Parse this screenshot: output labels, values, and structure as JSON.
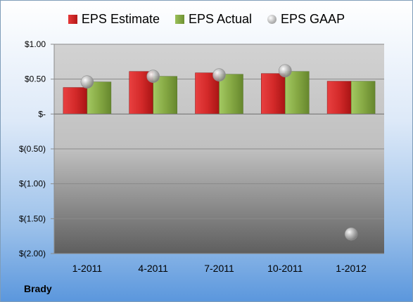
{
  "company": "Brady",
  "colors": {
    "estimate": "#d42a2a",
    "actual": "#86a944",
    "gaap": "#b0b0b0"
  },
  "chart_data": {
    "type": "bar",
    "categories": [
      "1-2011",
      "4-2011",
      "7-2011",
      "10-2011",
      "1-2012"
    ],
    "series": [
      {
        "name": "EPS Estimate",
        "kind": "bar",
        "values": [
          0.38,
          0.61,
          0.59,
          0.58,
          0.47
        ]
      },
      {
        "name": "EPS Actual",
        "kind": "bar",
        "values": [
          0.46,
          0.54,
          0.57,
          0.61,
          0.47
        ]
      },
      {
        "name": "EPS GAAP",
        "kind": "marker",
        "values": [
          0.46,
          0.54,
          0.56,
          0.62,
          -1.72
        ]
      }
    ],
    "ylim": [
      -2.0,
      1.0
    ],
    "yticks": [
      1.0,
      0.5,
      0.0,
      -0.5,
      -1.0,
      -1.5,
      -2.0
    ],
    "ytick_labels": [
      "$1.00",
      "$0.50",
      "$-",
      "$(0.50)",
      "$(1.00)",
      "$(1.50)",
      "$(2.00)"
    ],
    "legend": "top",
    "grid": true
  }
}
